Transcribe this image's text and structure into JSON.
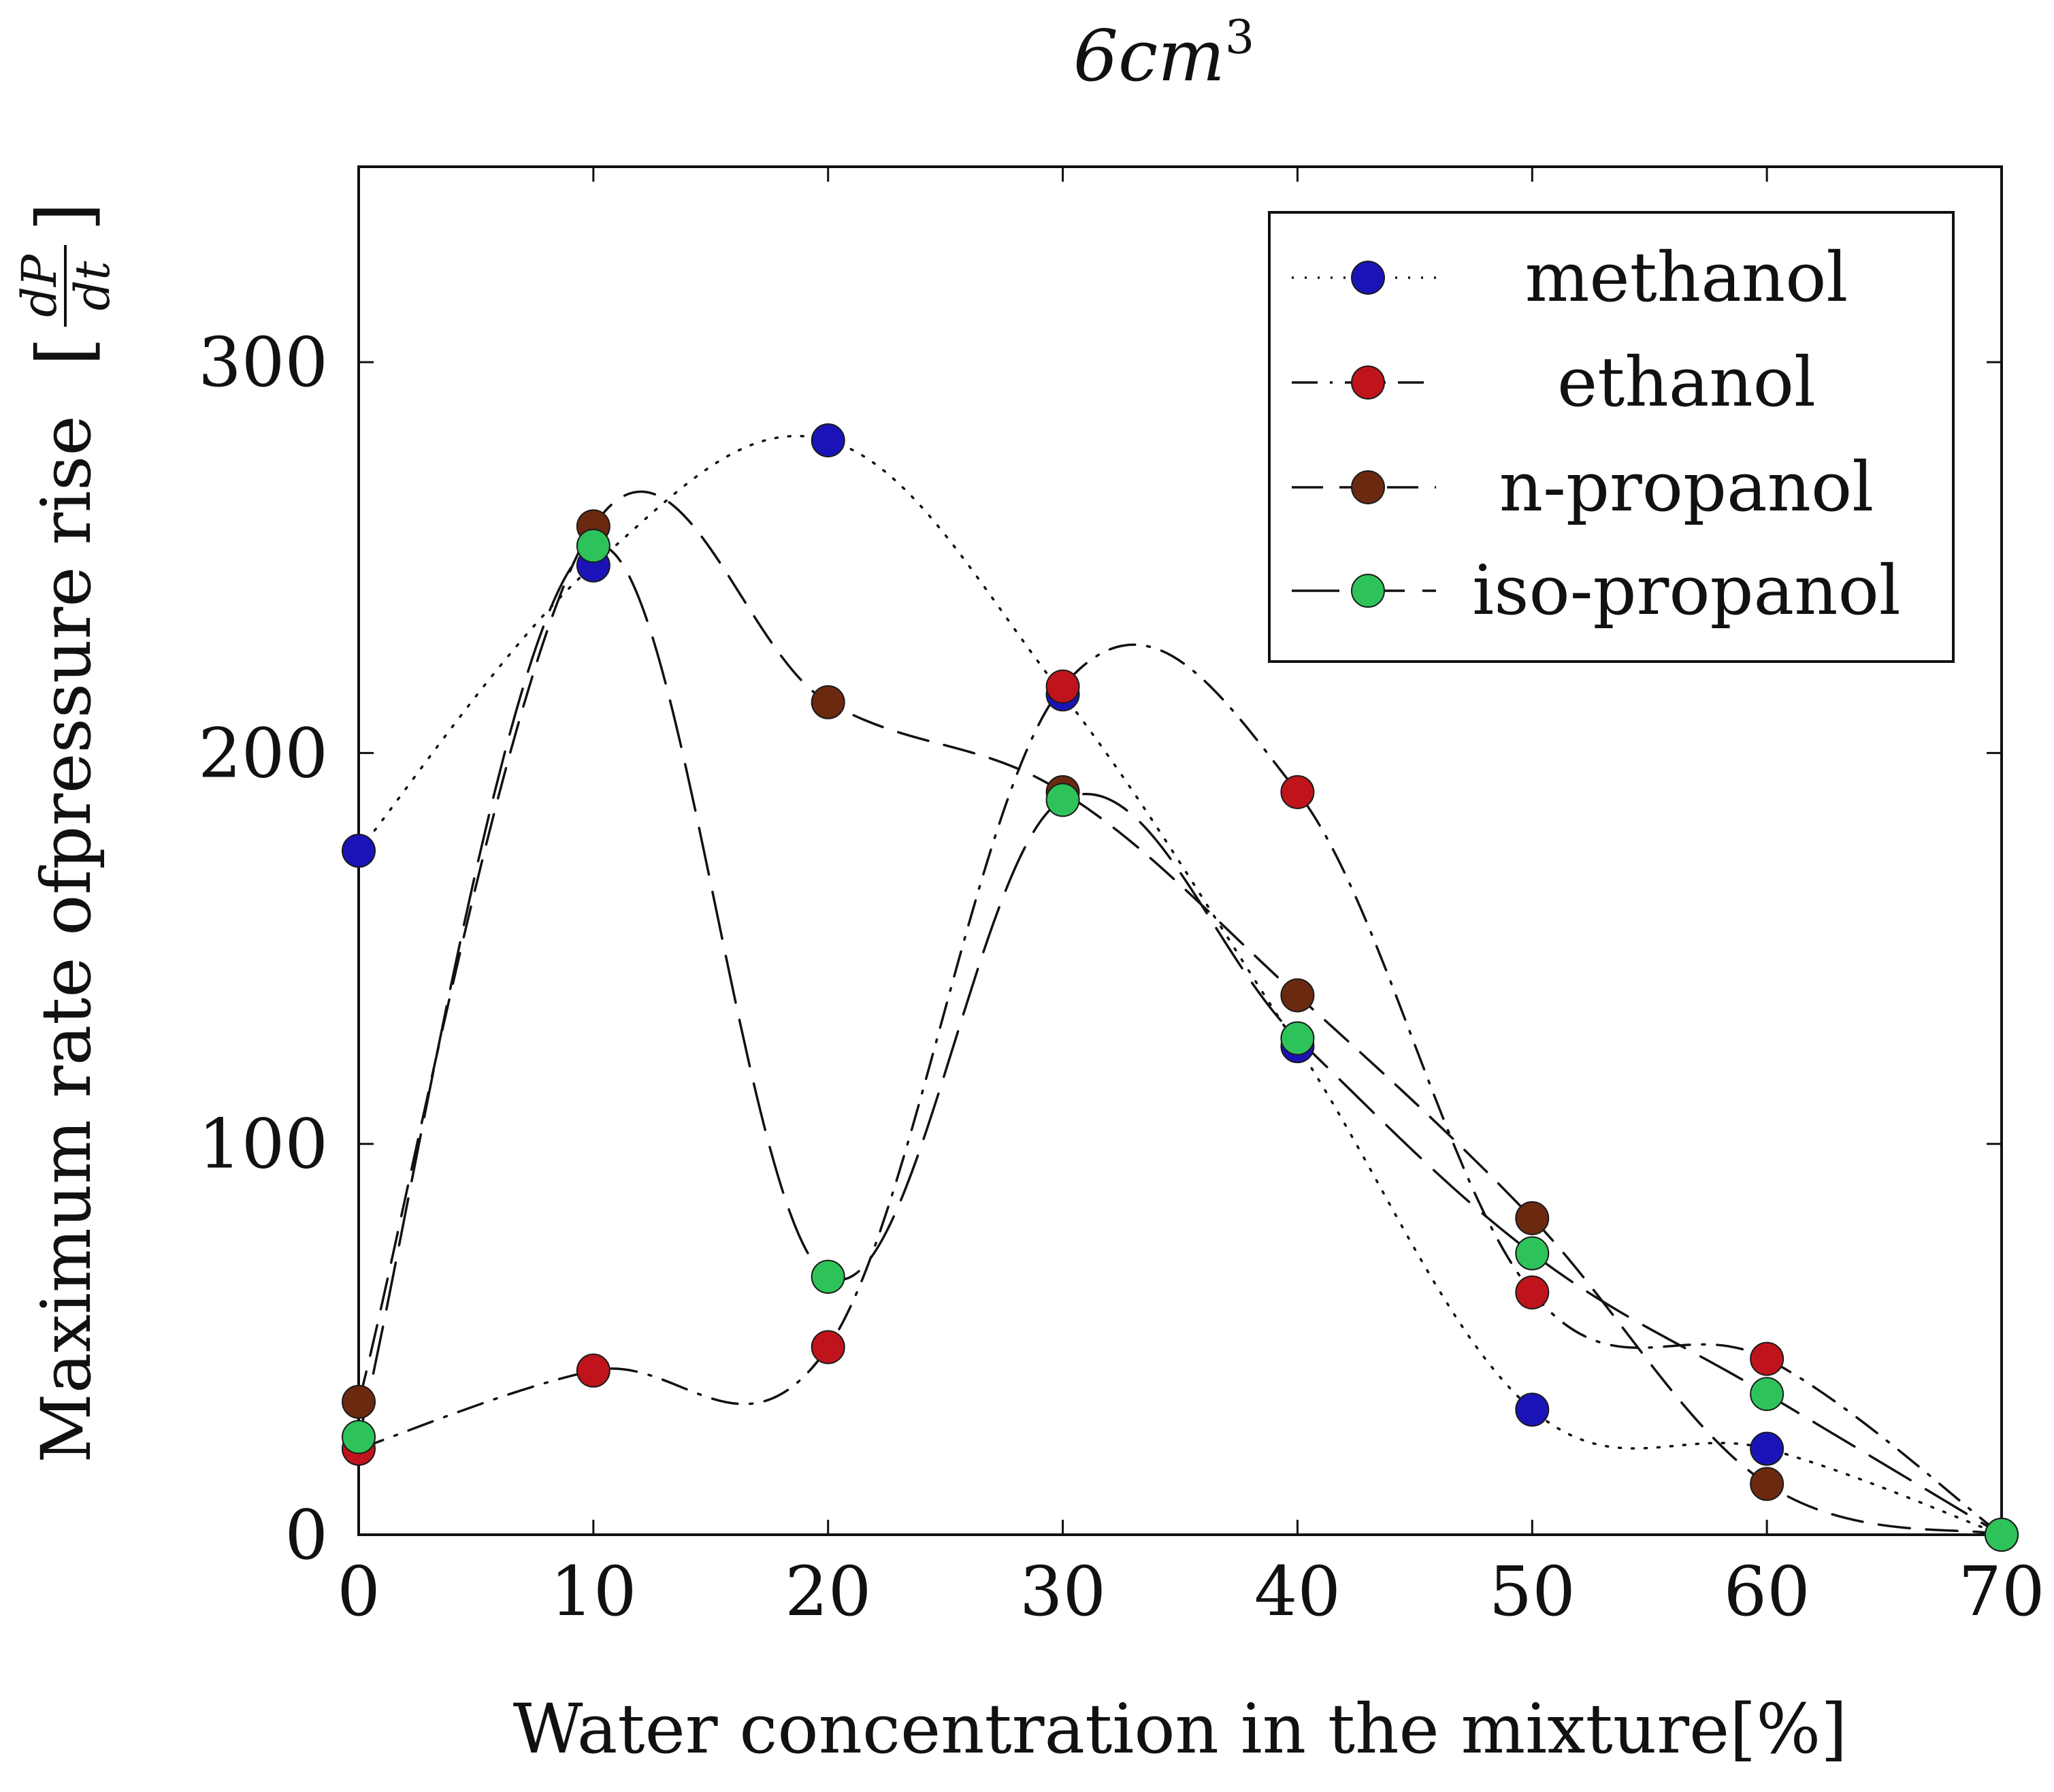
{
  "chart_data": {
    "type": "line",
    "title": "6cm",
    "title_superscript": "3",
    "xlabel": "Water concentration in the mixture[%]",
    "ylabel": "Maximum rate ofpressure rise",
    "ylabel_unit_numerator": "dP",
    "ylabel_unit_denominator": "dt",
    "xlim": [
      0,
      70
    ],
    "ylim": [
      0,
      350
    ],
    "x_ticks": [
      0,
      10,
      20,
      30,
      40,
      50,
      60,
      70
    ],
    "y_ticks": [
      0,
      100,
      200,
      300
    ],
    "grid": false,
    "legend_position": "top-right",
    "series": [
      {
        "name": "methanol",
        "color": "#1a14b8",
        "line_style": "dotted",
        "x": [
          0,
          10,
          20,
          30,
          40,
          50,
          60,
          70
        ],
        "values": [
          175,
          248,
          280,
          215,
          125,
          32,
          22,
          0
        ]
      },
      {
        "name": "ethanol",
        "color": "#c0141c",
        "line_style": "dash-dot",
        "x": [
          0,
          10,
          20,
          30,
          40,
          50,
          60,
          70
        ],
        "values": [
          22,
          42,
          48,
          217,
          190,
          62,
          45,
          0
        ]
      },
      {
        "name": "n-propanol",
        "color": "#6b2a10",
        "line_style": "dashed",
        "x": [
          0,
          10,
          20,
          30,
          40,
          50,
          60,
          70
        ],
        "values": [
          34,
          258,
          213,
          190,
          138,
          81,
          13,
          0
        ]
      },
      {
        "name": "iso-propanol",
        "color": "#2ec35a",
        "line_style": "long-dash",
        "x": [
          0,
          10,
          20,
          30,
          40,
          50,
          60,
          70
        ],
        "values": [
          25,
          253,
          66,
          188,
          127,
          72,
          36,
          0
        ]
      }
    ]
  }
}
